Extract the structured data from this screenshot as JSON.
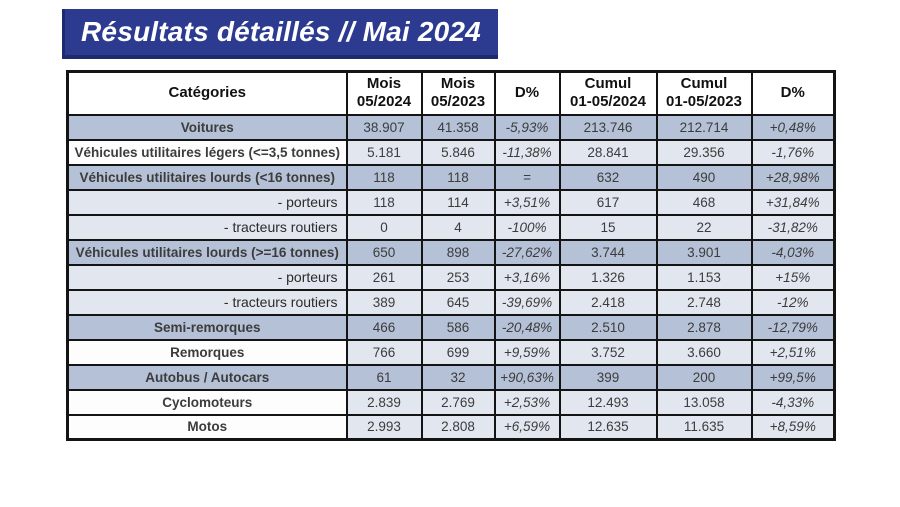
{
  "banner": {
    "title": "Résultats détaillés // Mai 2024",
    "bg_color": "#2c3b90",
    "edge_color": "#1c2a6e",
    "text_color": "#ffffff"
  },
  "colors": {
    "shaded_row": "#b5c1d6",
    "light_cell": "#e1e6ef",
    "white_cell": "#fdfdfe",
    "grid_border": "#141414"
  },
  "table": {
    "headers": [
      "Catégories",
      "Mois\n05/2024",
      "Mois\n05/2023",
      "D%",
      "Cumul\n01-05/2024",
      "Cumul\n01-05/2023",
      "D%"
    ],
    "rows": [
      {
        "label": "Voitures",
        "style": "shaded",
        "values": [
          "38.907",
          "41.358",
          "-5,93%",
          "213.746",
          "212.714",
          "+0,48%"
        ]
      },
      {
        "label": "Véhicules utilitaires légers (<=3,5 tonnes)",
        "style": "light",
        "values": [
          "5.181",
          "5.846",
          "-11,38%",
          "28.841",
          "29.356",
          "-1,76%"
        ]
      },
      {
        "label": "Véhicules utilitaires lourds (<16 tonnes)",
        "style": "shaded",
        "values": [
          "118",
          "118",
          "=",
          "632",
          "490",
          "+28,98%"
        ]
      },
      {
        "label": "- porteurs",
        "style": "sub",
        "values": [
          "118",
          "114",
          "+3,51%",
          "617",
          "468",
          "+31,84%"
        ]
      },
      {
        "label": "- tracteurs routiers",
        "style": "sub",
        "values": [
          "0",
          "4",
          "-100%",
          "15",
          "22",
          "-31,82%"
        ]
      },
      {
        "label": "Véhicules utilitaires lourds (>=16 tonnes)",
        "style": "shaded",
        "values": [
          "650",
          "898",
          "-27,62%",
          "3.744",
          "3.901",
          "-4,03%"
        ]
      },
      {
        "label": "- porteurs",
        "style": "sub",
        "values": [
          "261",
          "253",
          "+3,16%",
          "1.326",
          "1.153",
          "+15%"
        ]
      },
      {
        "label": "- tracteurs routiers",
        "style": "sub",
        "values": [
          "389",
          "645",
          "-39,69%",
          "2.418",
          "2.748",
          "-12%"
        ]
      },
      {
        "label": "Semi-remorques",
        "style": "shaded",
        "values": [
          "466",
          "586",
          "-20,48%",
          "2.510",
          "2.878",
          "-12,79%"
        ]
      },
      {
        "label": "Remorques",
        "style": "light",
        "values": [
          "766",
          "699",
          "+9,59%",
          "3.752",
          "3.660",
          "+2,51%"
        ]
      },
      {
        "label": "Autobus / Autocars",
        "style": "shaded",
        "values": [
          "61",
          "32",
          "+90,63%",
          "399",
          "200",
          "+99,5%"
        ]
      },
      {
        "label": "Cyclomoteurs",
        "style": "light",
        "values": [
          "2.839",
          "2.769",
          "+2,53%",
          "12.493",
          "13.058",
          "-4,33%"
        ]
      },
      {
        "label": "Motos",
        "style": "light",
        "values": [
          "2.993",
          "2.808",
          "+6,59%",
          "12.635",
          "11.635",
          "+8,59%"
        ]
      }
    ]
  }
}
